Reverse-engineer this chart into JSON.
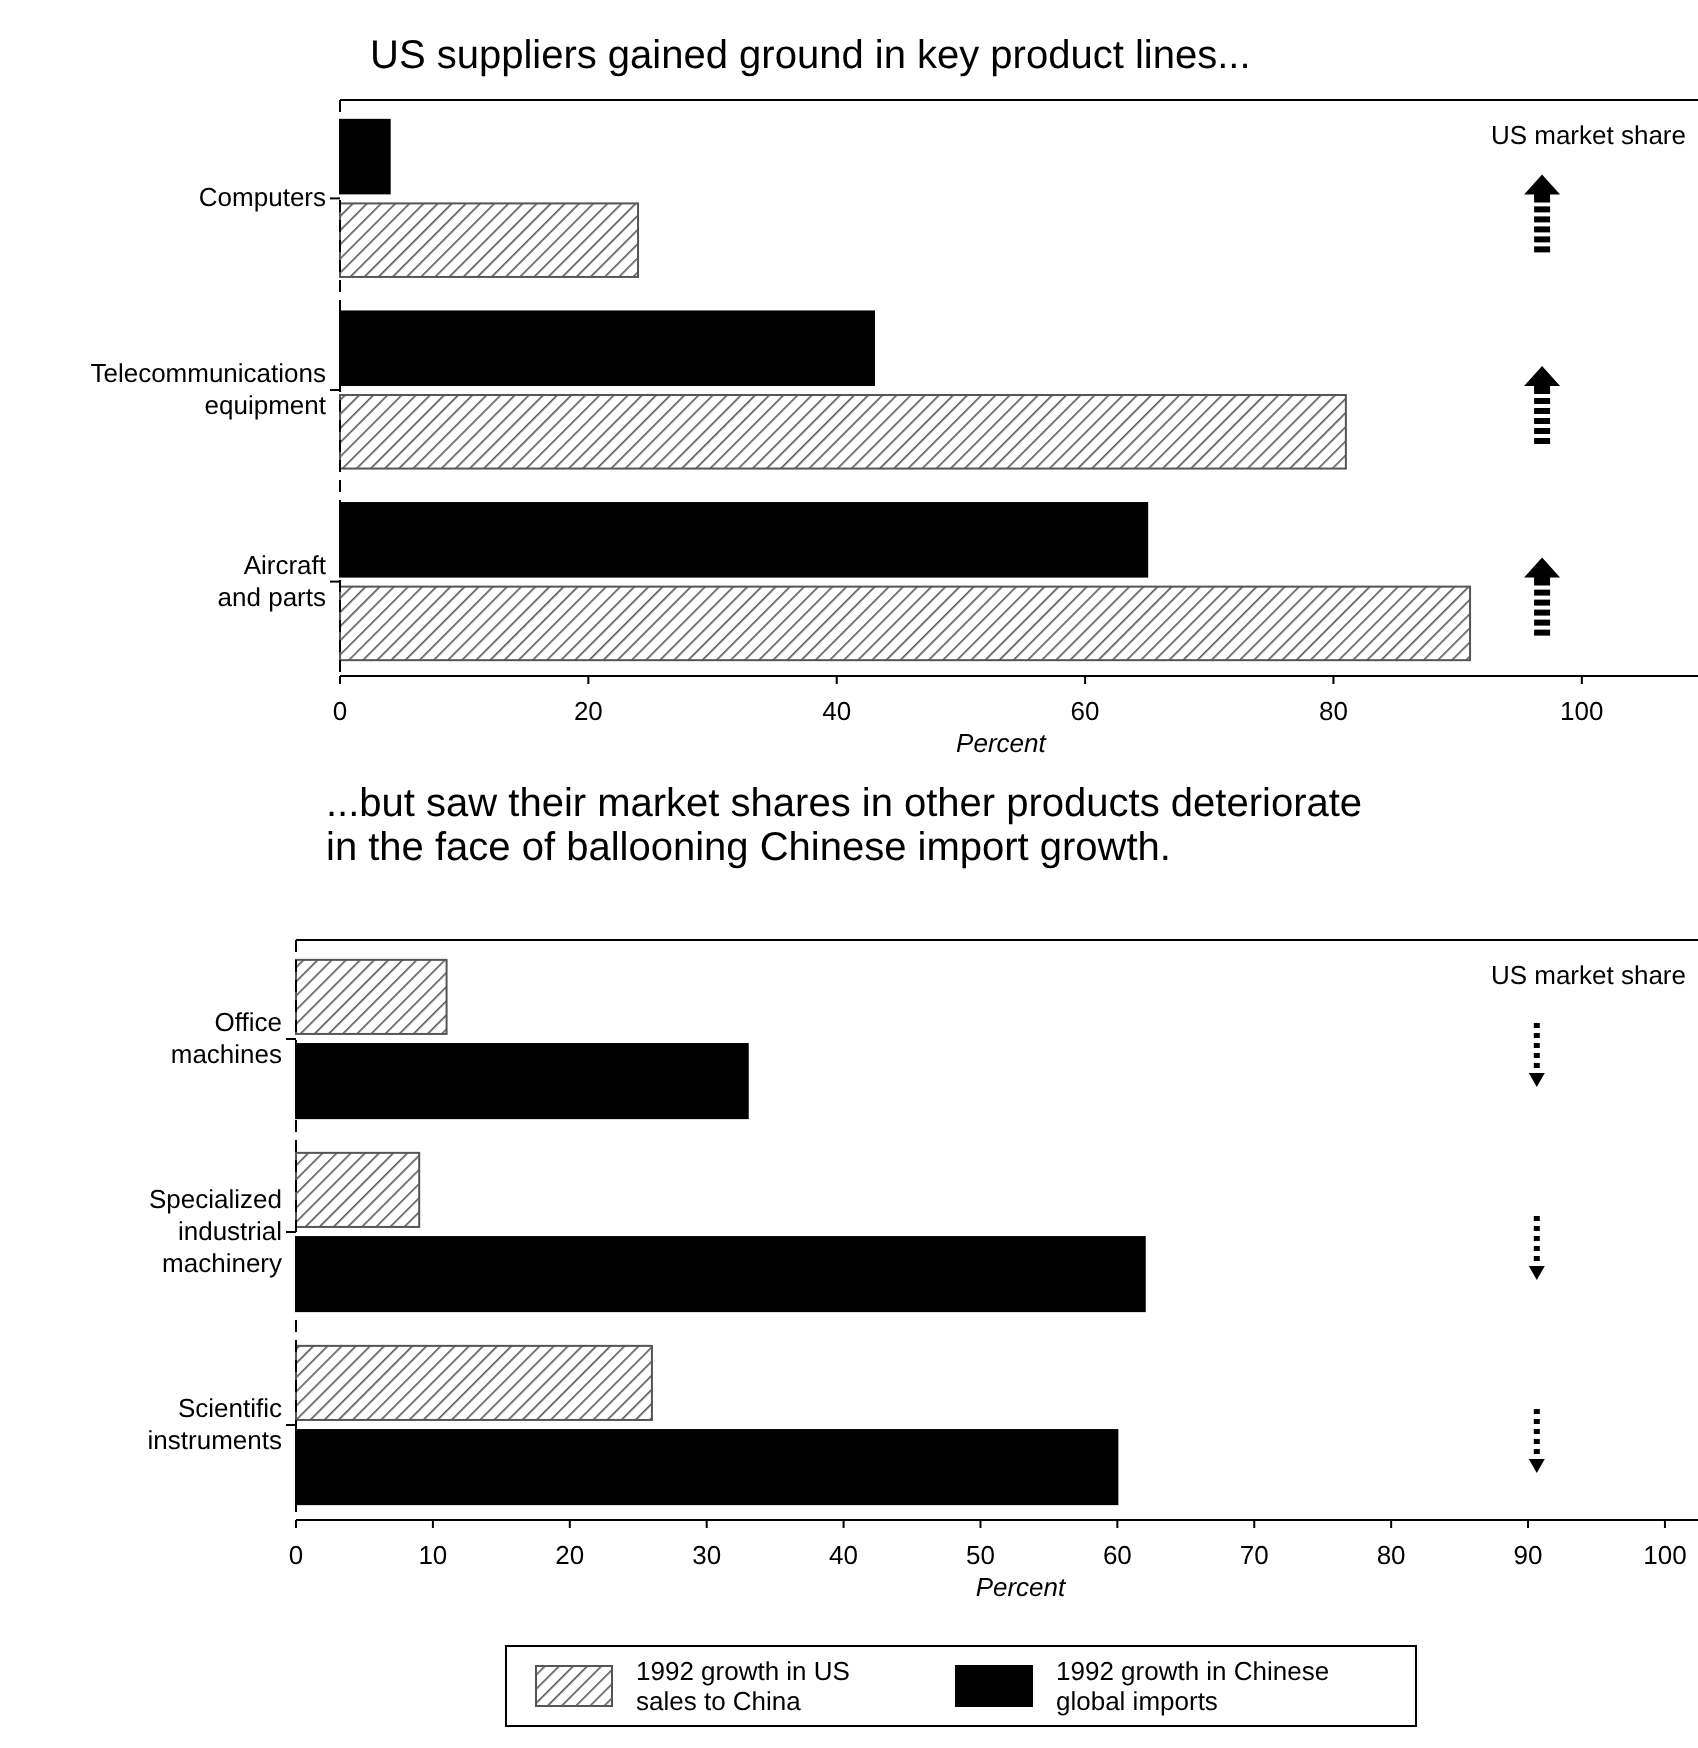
{
  "chart_data": [
    {
      "type": "bar",
      "orientation": "horizontal",
      "title": "US suppliers gained ground in key product lines...",
      "xlabel": "Percent",
      "categories": [
        "Computers",
        "Telecommunications equipment",
        "Aircraft and parts"
      ],
      "xlim": [
        0,
        110
      ],
      "xticks": [
        0,
        20,
        40,
        60,
        80,
        100
      ],
      "legend": false,
      "annotations": [
        "US market share"
      ],
      "series": [
        {
          "color": "#000000",
          "values": [
            4,
            43,
            65
          ]
        },
        {
          "color": "#555555",
          "values": [
            24,
            81,
            91
          ]
        }
      ]
    },
    {
      "type": "bar",
      "orientation": "horizontal",
      "title": "...but saw their market shares in other products deteriorate in the  face of ballooning Chinese import growth.",
      "xlabel": "Percent",
      "categories": [
        "Office machines",
        "Specialized industrial machinery",
        "Scientific instruments"
      ],
      "xlim": [
        0,
        103
      ],
      "xticks": [
        0,
        10,
        20,
        30,
        40,
        50,
        60,
        70,
        80,
        90,
        100
      ],
      "legend": "bottom",
      "annotations": [
        "US market share"
      ],
      "series": [
        {
          "name": "1992 growth in US sales to China",
          "color": "#555555",
          "values": [
            11,
            9,
            26
          ]
        },
        {
          "name": "1992 growth in Chinese global imports",
          "color": "#000000",
          "values": [
            33,
            62,
            60
          ]
        }
      ]
    }
  ]
}
